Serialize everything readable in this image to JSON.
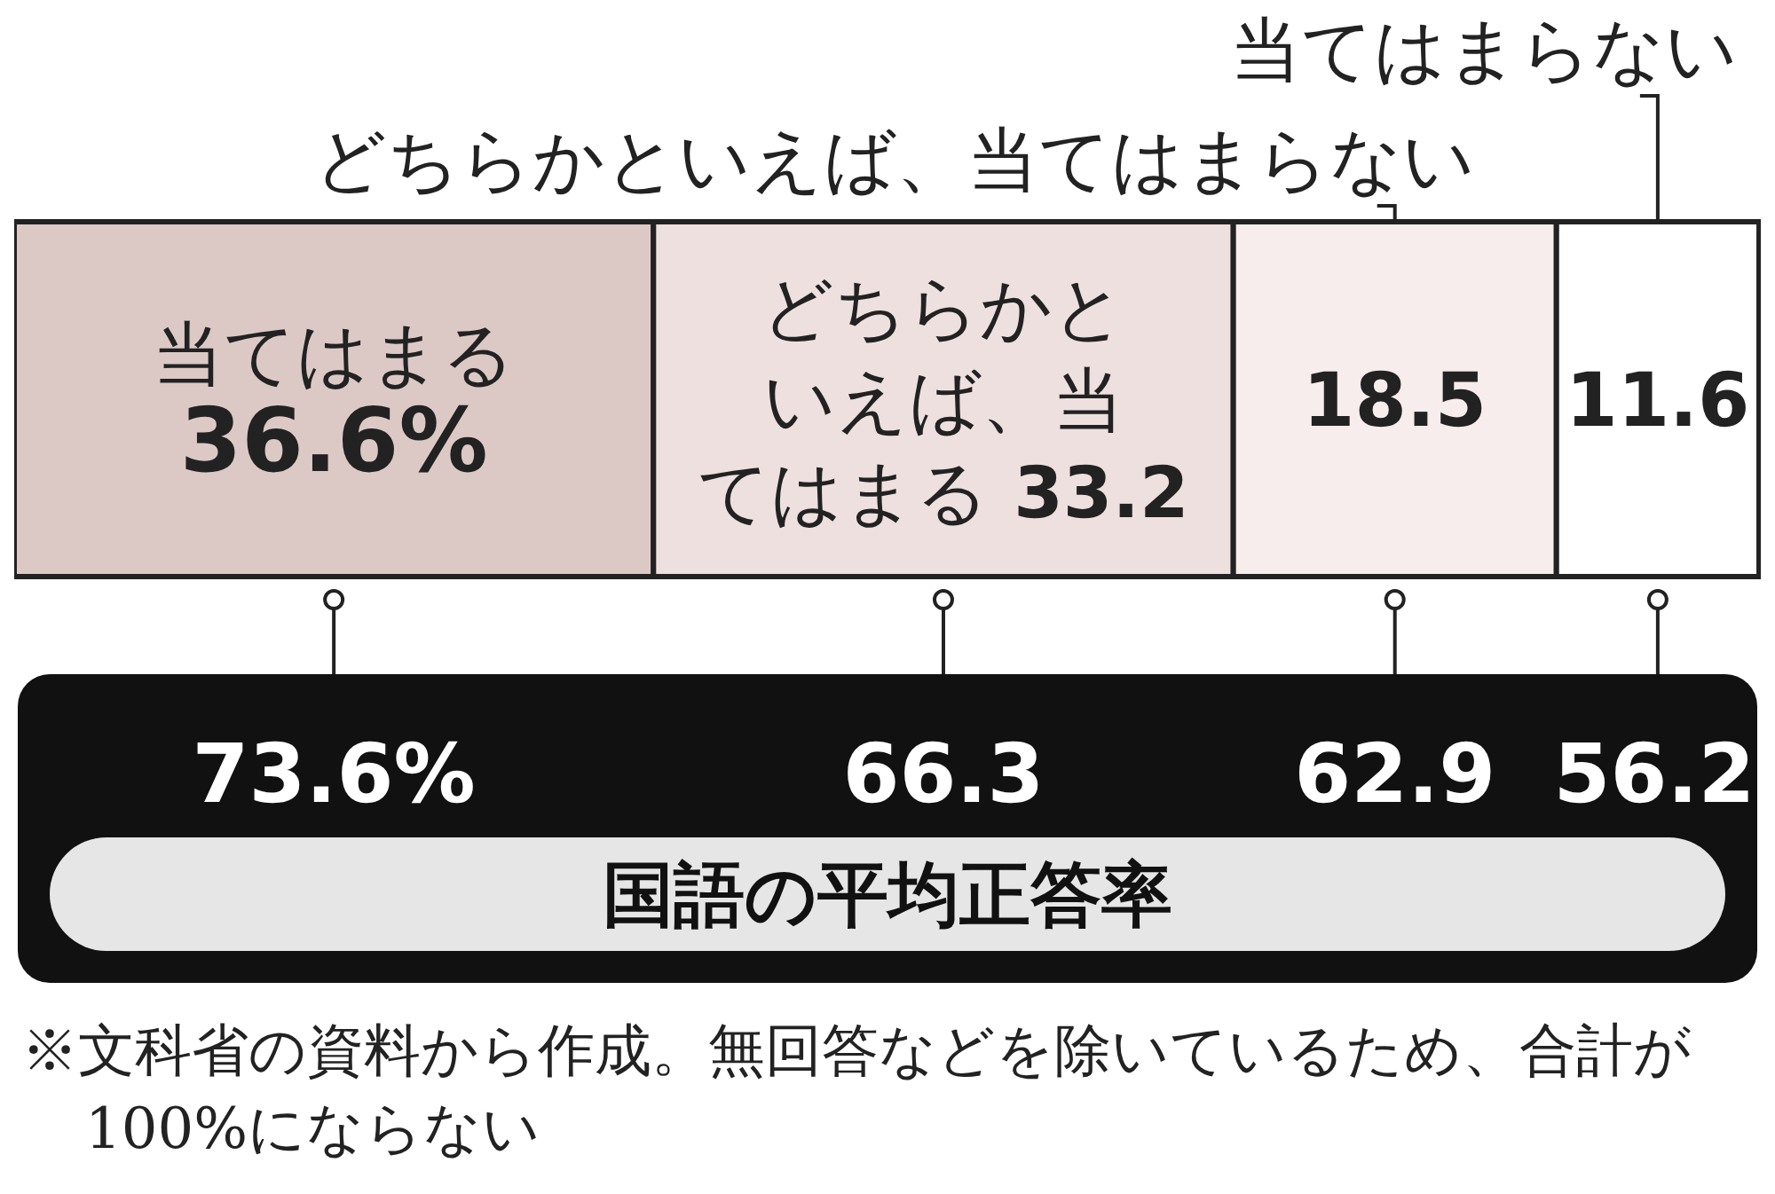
{
  "chart_data": [
    {
      "type": "bar",
      "orientation": "horizontal",
      "stacked": true,
      "categories": [
        null
      ],
      "xlim": [
        0,
        100
      ],
      "tick_labels": false,
      "series": [
        {
          "name": "当てはまる",
          "color": "#dcc9c6",
          "values": [
            36.6
          ],
          "value_labels": [
            "36.6%"
          ]
        },
        {
          "name": "どちらかといえば、当てはまる",
          "color": "#eee0df",
          "values": [
            33.2
          ],
          "value_labels": [
            "33.2"
          ]
        },
        {
          "name": "どちらかといえば、当てはまらない",
          "color": "#f8eded",
          "values": [
            18.5
          ],
          "value_labels": [
            "18.5"
          ]
        },
        {
          "name": "当てはまらない",
          "color": "#ffffff",
          "values": [
            11.6
          ],
          "value_labels": [
            "11.6"
          ]
        }
      ]
    },
    {
      "type": "other",
      "title": "国語の平均正答率",
      "values": [
        73.6,
        66.3,
        62.9,
        56.2
      ],
      "value_labels": [
        "73.6%",
        "66.3",
        "62.9",
        "56.2"
      ],
      "annotations": [
        "※文科省の資料から作成。無回答などを除いているため、合計が100%にならない"
      ]
    }
  ]
}
